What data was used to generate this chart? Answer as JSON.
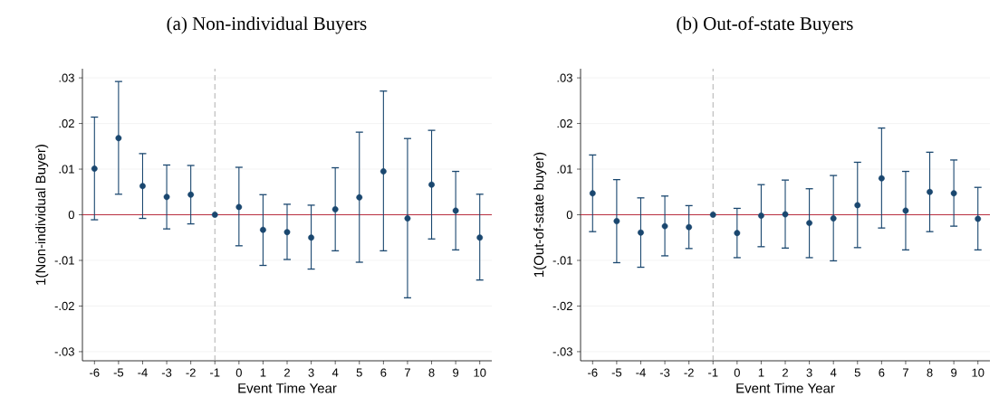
{
  "chart_data": [
    {
      "type": "scatter",
      "title": "(a) Non-individual Buyers",
      "xlabel": "Event Time Year",
      "ylabel": "1(Non-individual Buyer)",
      "x": [
        -6,
        -5,
        -4,
        -3,
        -2,
        -1,
        0,
        1,
        2,
        3,
        4,
        5,
        6,
        7,
        8,
        9,
        10
      ],
      "values": [
        0.0101,
        0.0168,
        0.0063,
        0.0039,
        0.0044,
        0,
        0.0017,
        -0.0033,
        -0.0038,
        -0.005,
        0.0012,
        0.0038,
        0.0095,
        -0.0008,
        0.0066,
        0.0009,
        -0.005
      ],
      "errors": [
        [
          -0.0011,
          0.0214
        ],
        [
          0.0045,
          0.0292
        ],
        [
          -0.0008,
          0.0134
        ],
        [
          -0.0031,
          0.0109
        ],
        [
          -0.002,
          0.0108
        ],
        null,
        [
          -0.0068,
          0.0104
        ],
        [
          -0.0111,
          0.0044
        ],
        [
          -0.0098,
          0.0023
        ],
        [
          -0.0119,
          0.0021
        ],
        [
          -0.0079,
          0.0103
        ],
        [
          -0.0104,
          0.0181
        ],
        [
          -0.0079,
          0.0271
        ],
        [
          -0.0182,
          0.0167
        ],
        [
          -0.0053,
          0.0185
        ],
        [
          -0.0077,
          0.0095
        ],
        [
          -0.0143,
          0.0045
        ]
      ],
      "color": "#1a476f",
      "marker": "circle",
      "grid": "y",
      "xlim": [
        -6.5,
        10.5
      ],
      "ylim": [
        -0.032,
        0.032
      ],
      "xticks": [
        -6,
        -5,
        -4,
        -3,
        -2,
        -1,
        0,
        1,
        2,
        3,
        4,
        5,
        6,
        7,
        8,
        9,
        10
      ],
      "yticks": [
        {
          "value": -0.03,
          "label": "-.03"
        },
        {
          "value": -0.02,
          "label": "-.02"
        },
        {
          "value": -0.01,
          "label": "-.01"
        },
        0,
        {
          "value": 0.01,
          "label": ".01"
        },
        {
          "value": 0.02,
          "label": ".02"
        },
        {
          "value": 0.03,
          "label": ".03"
        }
      ],
      "ref_lines": [
        {
          "axis": "x",
          "value": -1,
          "color": "#999999",
          "line_style": "dashed"
        },
        {
          "axis": "y",
          "value": 0,
          "color": "#b2182b",
          "line_style": "solid"
        }
      ]
    },
    {
      "type": "scatter",
      "title": "(b) Out-of-state Buyers",
      "xlabel": "Event Time Year",
      "ylabel": "1(Out-of-state buyer)",
      "x": [
        -6,
        -5,
        -4,
        -3,
        -2,
        -1,
        0,
        1,
        2,
        3,
        4,
        5,
        6,
        7,
        8,
        9,
        10
      ],
      "values": [
        0.0047,
        -0.0014,
        -0.0039,
        -0.0025,
        -0.0027,
        0,
        -0.004,
        -0.0002,
        0.0001,
        -0.0018,
        -0.0008,
        0.0021,
        0.008,
        0.0009,
        0.005,
        0.0047,
        -0.0009
      ],
      "errors": [
        [
          -0.0037,
          0.0131
        ],
        [
          -0.0105,
          0.0077
        ],
        [
          -0.0115,
          0.0037
        ],
        [
          -0.009,
          0.0041
        ],
        [
          -0.0074,
          0.002
        ],
        null,
        [
          -0.0094,
          0.0014
        ],
        [
          -0.007,
          0.0066
        ],
        [
          -0.0073,
          0.0076
        ],
        [
          -0.0094,
          0.0057
        ],
        [
          -0.0101,
          0.0086
        ],
        [
          -0.0072,
          0.0115
        ],
        [
          -0.0029,
          0.019
        ],
        [
          -0.0077,
          0.0095
        ],
        [
          -0.0037,
          0.0137
        ],
        [
          -0.0025,
          0.012
        ],
        [
          -0.0077,
          0.006
        ]
      ],
      "color": "#1a476f",
      "marker": "circle",
      "grid": "y",
      "xlim": [
        -6.5,
        10.5
      ],
      "ylim": [
        -0.032,
        0.032
      ],
      "xticks": [
        -6,
        -5,
        -4,
        -3,
        -2,
        -1,
        0,
        1,
        2,
        3,
        4,
        5,
        6,
        7,
        8,
        9,
        10
      ],
      "yticks": [
        {
          "value": -0.03,
          "label": "-.03"
        },
        {
          "value": -0.02,
          "label": "-.02"
        },
        {
          "value": -0.01,
          "label": "-.01"
        },
        0,
        {
          "value": 0.01,
          "label": ".01"
        },
        {
          "value": 0.02,
          "label": ".02"
        },
        {
          "value": 0.03,
          "label": ".03"
        }
      ],
      "ref_lines": [
        {
          "axis": "x",
          "value": -1,
          "color": "#999999",
          "line_style": "dashed"
        },
        {
          "axis": "y",
          "value": 0,
          "color": "#b2182b",
          "line_style": "solid"
        }
      ]
    }
  ]
}
